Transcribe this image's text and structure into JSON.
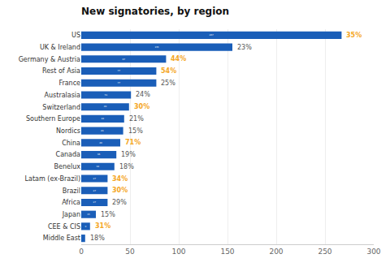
{
  "chart_data": {
    "type": "bar",
    "orientation": "horizontal",
    "title": "New signatories, by region",
    "categories": [
      "Middle East",
      "CEE & CIS",
      "Japan",
      "Africa",
      "Brazil",
      "Latam (ex-Brazil)",
      "Benelux",
      "Canada",
      "China",
      "Nordics",
      "Southern Europe",
      "Switzerland",
      "Australasia",
      "France",
      "Rest of Asia",
      "Germany & Austria",
      "UK & Ireland",
      "US"
    ],
    "values": [
      4,
      9,
      15,
      27,
      27,
      27,
      34,
      36,
      40,
      43,
      44,
      49,
      51,
      77,
      77,
      87,
      155,
      267
    ],
    "data_labels": true,
    "value_labels": [
      null,
      "9",
      "15",
      "27",
      "27",
      "27",
      "34",
      "36",
      "40",
      "43",
      "44",
      "49",
      "51",
      "77",
      "77",
      "87",
      "155",
      "267"
    ],
    "value_label_color": "#ffffff",
    "pct_labels": [
      "18%",
      "31%",
      "15%",
      "29%",
      "30%",
      "34%",
      "18%",
      "19%",
      "71%",
      "15%",
      "21%",
      "30%",
      "24%",
      "25%",
      "54%",
      "44%",
      "23%",
      "35%"
    ],
    "pct_highlight": [
      false,
      true,
      false,
      false,
      true,
      true,
      false,
      false,
      true,
      false,
      false,
      true,
      false,
      false,
      true,
      true,
      false,
      true
    ],
    "pct_colors": {
      "highlight": "#f5a623",
      "normal": "#555555"
    },
    "color": "#1a5eb8",
    "xlim": [
      0,
      300
    ],
    "xticks": [
      0,
      50,
      100,
      150,
      200,
      250,
      300
    ],
    "grid": true
  }
}
